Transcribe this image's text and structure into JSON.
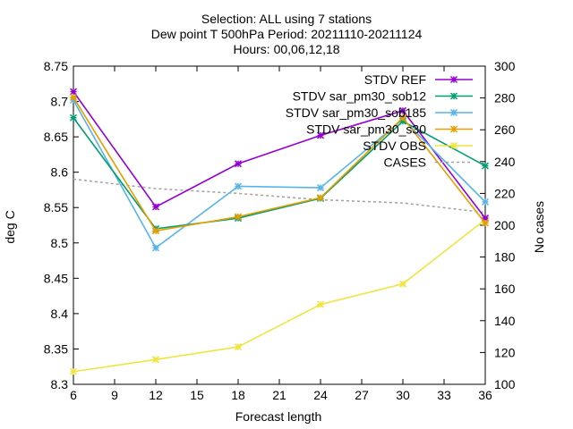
{
  "chart_data": {
    "type": "line",
    "title_lines": [
      "Selection: ALL using      7 stations",
      "Dew point T 500hPa   Period: 20211110-20211124",
      "Hours: 00,06,12,18"
    ],
    "xlabel": "Forecast length",
    "ylabel": "deg C",
    "y2label": "No cases",
    "xlim": [
      6,
      36
    ],
    "ylim": [
      8.3,
      8.75
    ],
    "y2lim": [
      100,
      300
    ],
    "xticks": [
      6,
      9,
      12,
      15,
      18,
      21,
      24,
      27,
      30,
      33,
      36
    ],
    "yticks": [
      8.3,
      8.35,
      8.4,
      8.45,
      8.5,
      8.55,
      8.6,
      8.65,
      8.7,
      8.75
    ],
    "yticklabels": [
      "8.3",
      "8.35",
      "8.4",
      "8.45",
      "8.5",
      "8.55",
      "8.6",
      "8.65",
      "8.7",
      "8.75"
    ],
    "y2ticks": [
      100,
      120,
      140,
      160,
      180,
      200,
      220,
      240,
      260,
      280,
      300
    ],
    "legend_position": "top-right",
    "x": [
      6,
      12,
      18,
      24,
      30,
      36
    ],
    "series": [
      {
        "name": "STDV REF",
        "color": "#9400d3",
        "values": [
          8.714,
          8.551,
          8.612,
          8.652,
          8.687,
          8.535
        ]
      },
      {
        "name": "STDV sar_pm30_sob12",
        "color": "#009e73",
        "values": [
          8.677,
          8.52,
          8.535,
          8.563,
          8.672,
          8.609
        ]
      },
      {
        "name": "STDV sar_pm30_sob185",
        "color": "#56b4e9",
        "values": [
          8.702,
          8.493,
          8.58,
          8.578,
          8.675,
          8.558
        ]
      },
      {
        "name": "STDV sar_pm30_s30",
        "color": "#e69f00",
        "values": [
          8.706,
          8.517,
          8.537,
          8.564,
          8.677,
          8.528
        ]
      },
      {
        "name": "STDV OBS",
        "color": "#f0e442",
        "values": [
          8.318,
          8.335,
          8.353,
          8.413,
          8.442,
          8.533
        ]
      }
    ],
    "cases": {
      "name": "CASES",
      "color": "#a0a0a0",
      "axis": "right",
      "values": [
        229,
        223,
        220,
        216,
        214,
        208
      ]
    }
  }
}
